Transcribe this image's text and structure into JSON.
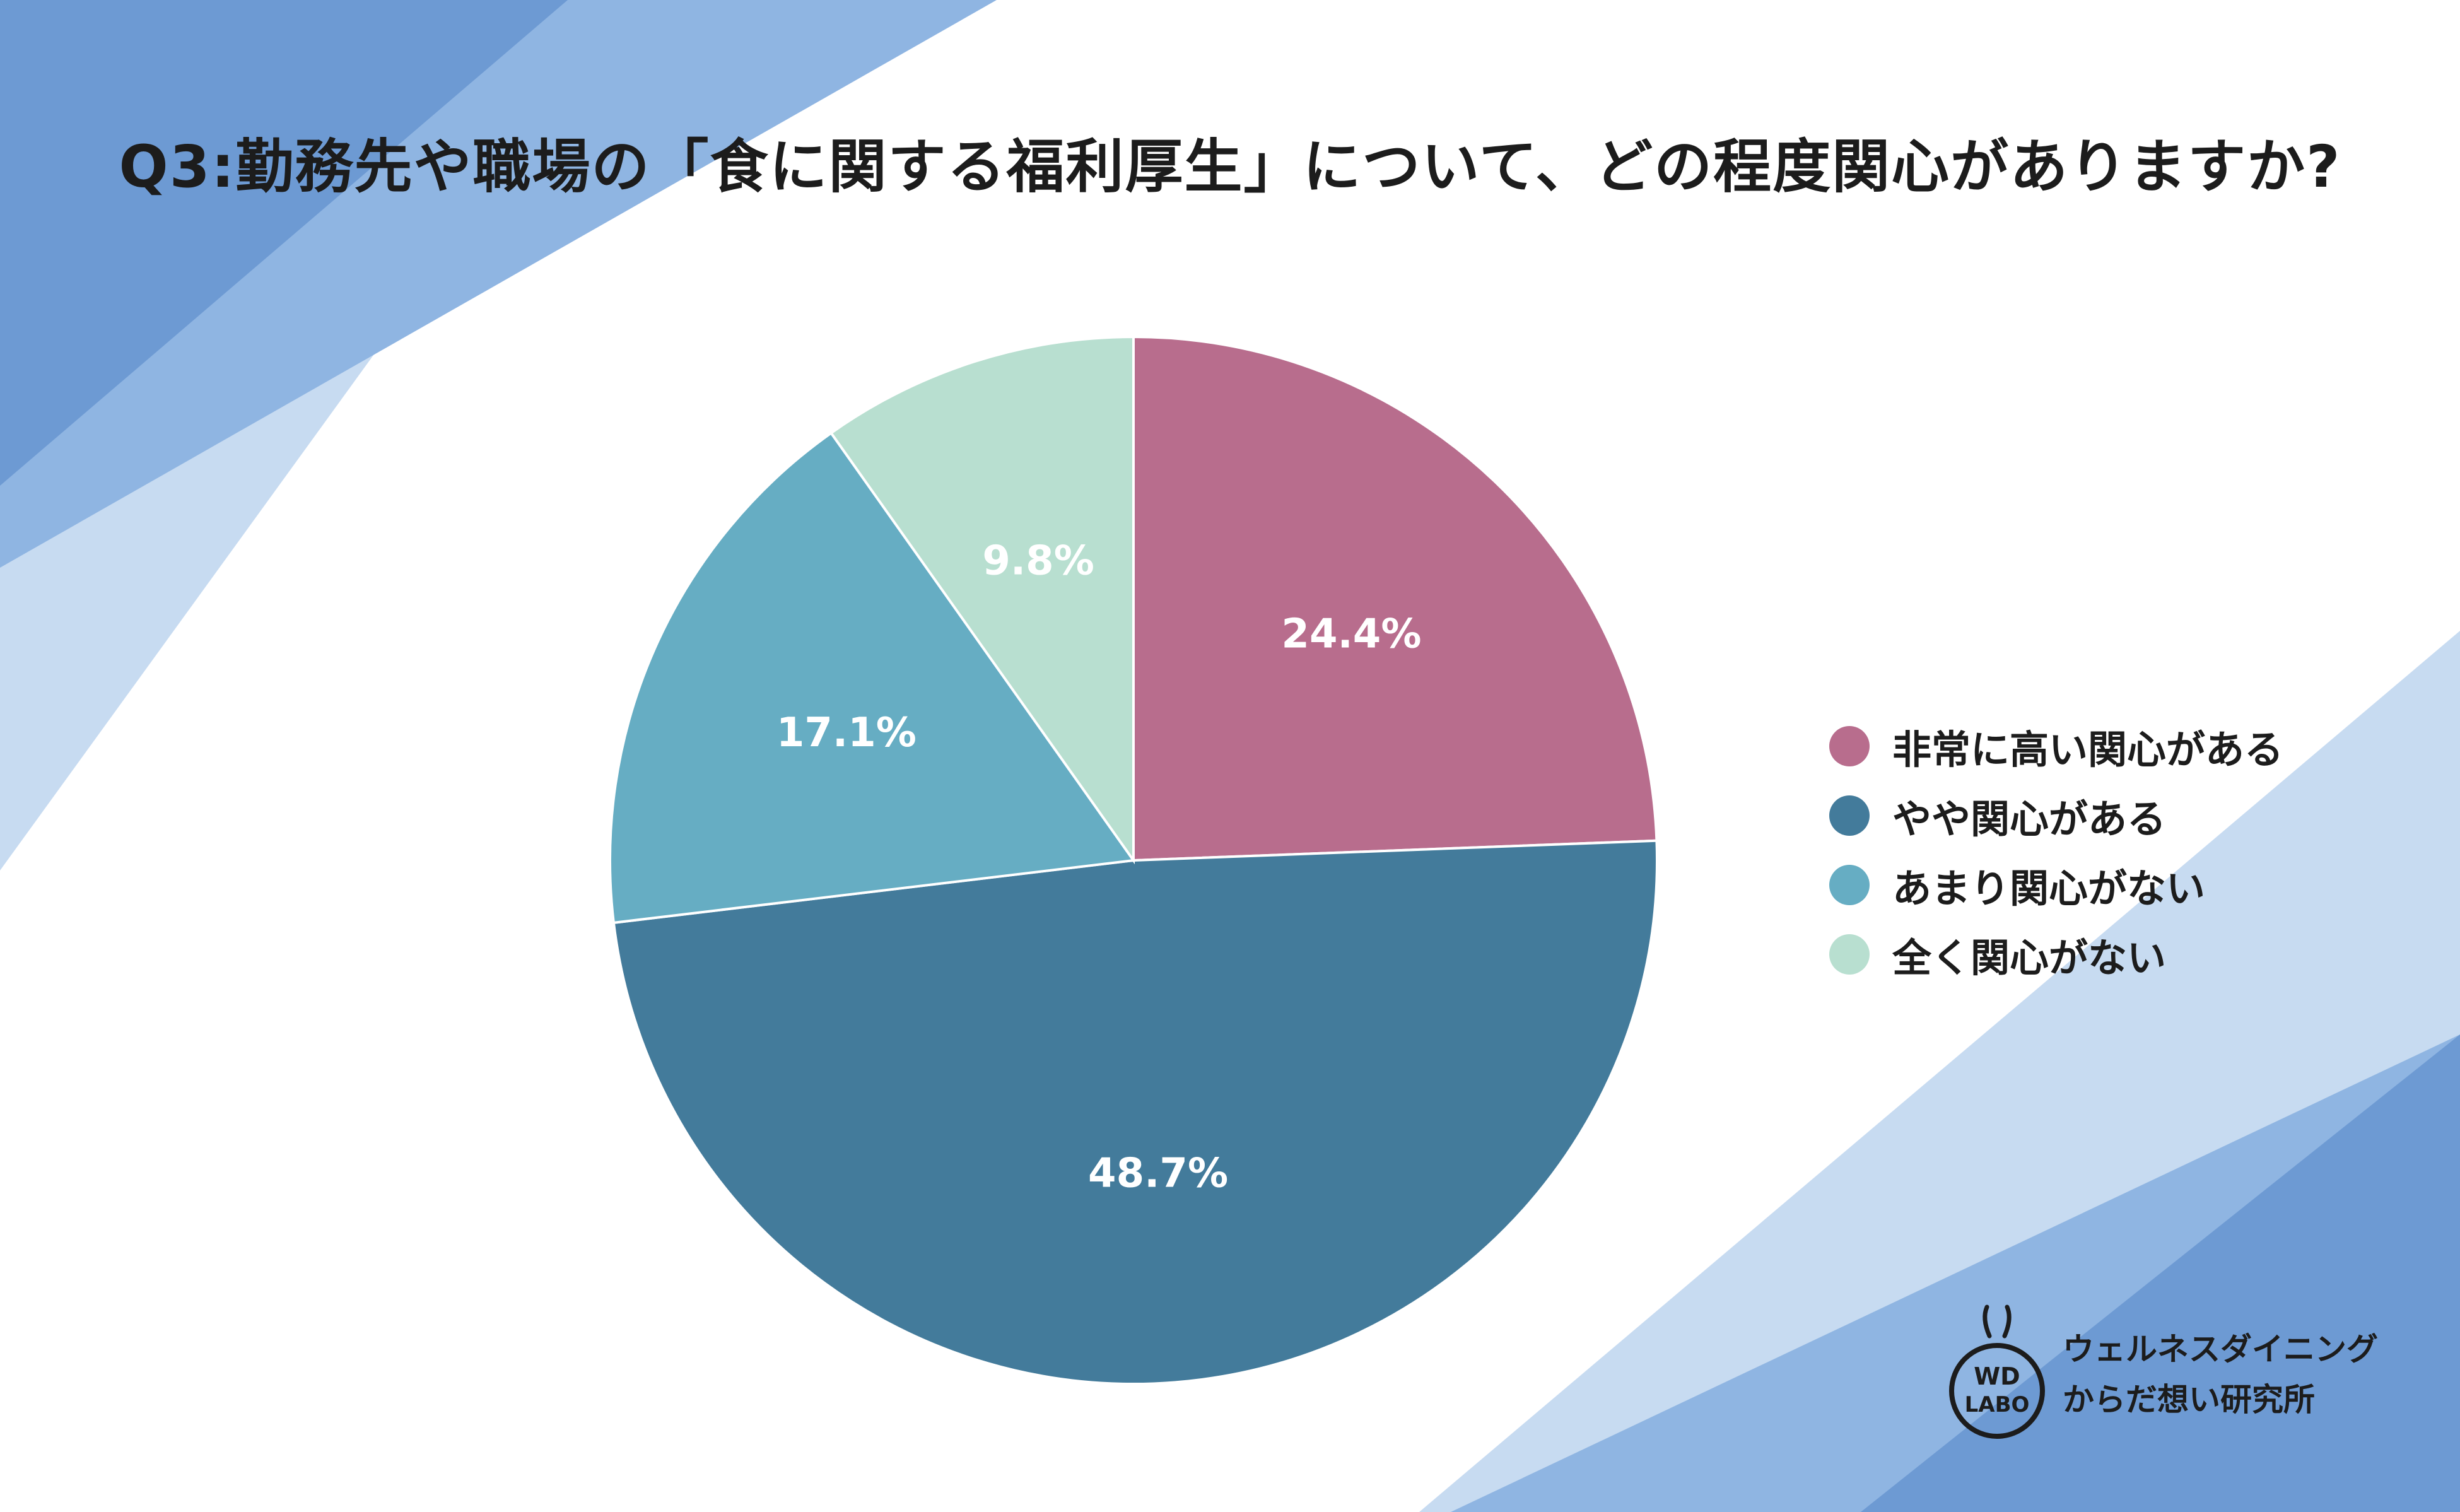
{
  "colors": {
    "page_background": "#ffffff",
    "band_dark": "#6d9ad3",
    "band_mid": "#8fb5e2",
    "band_light": "#c7dbf1"
  },
  "chart_data": {
    "type": "pie",
    "title": "Q3:勤務先や職場の「食に関する福利厚生」について、どの程度関心がありますか?",
    "legend_position": "right",
    "start_angle": "12 o'clock, clockwise",
    "slices": [
      {
        "label": "非常に高い関心がある",
        "value": 24.4,
        "value_label": "24.4%",
        "color": "#b86d8d"
      },
      {
        "label": "やや関心がある",
        "value": 48.7,
        "value_label": "48.7%",
        "color": "#437b9b"
      },
      {
        "label": "あまり関心がない",
        "value": 17.1,
        "value_label": "17.1%",
        "color": "#66adc3"
      },
      {
        "label": "全く関心がない",
        "value": 9.8,
        "value_label": "9.8%",
        "color": "#b8dfd0"
      }
    ]
  },
  "brand": {
    "logo_line1": "WD",
    "logo_line2": "LABO",
    "line1": "ウェルネスダイニング",
    "line2": "からだ想い研究所",
    "logo_icon": "flask-icon"
  }
}
